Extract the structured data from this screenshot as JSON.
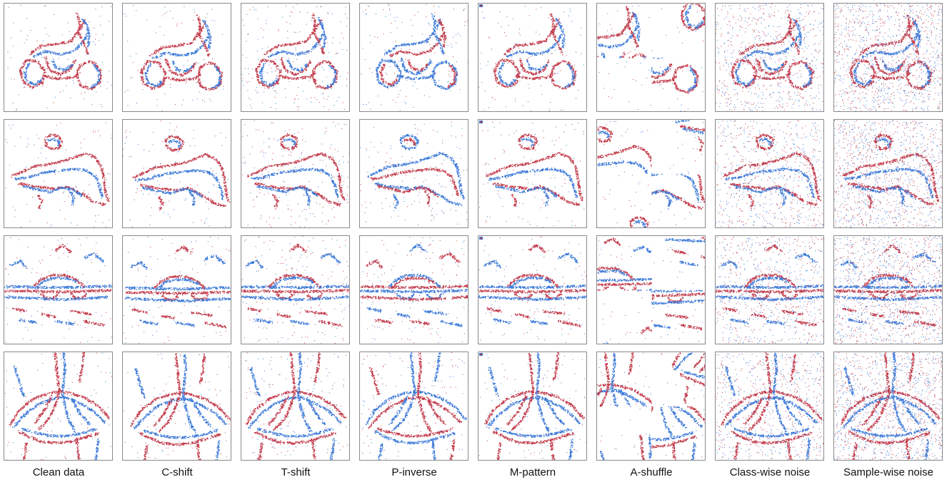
{
  "columns": [
    {
      "id": "clean",
      "label": "Clean data",
      "noise": 0.004
    },
    {
      "id": "c-shift",
      "label": "C-shift",
      "noise": 0.004
    },
    {
      "id": "t-shift",
      "label": "T-shift",
      "noise": 0.008
    },
    {
      "id": "p-inverse",
      "label": "P-inverse",
      "noise": 0.006
    },
    {
      "id": "m-pattern",
      "label": "M-pattern",
      "noise": 0.005
    },
    {
      "id": "a-shuffle",
      "label": "A-shuffle",
      "noise": 0.003
    },
    {
      "id": "class-wise-noise",
      "label": "Class-wise noise",
      "noise": 0.03
    },
    {
      "id": "sample-wise-noise",
      "label": "Sample-wise noise",
      "noise": 0.05
    }
  ],
  "rows": [
    {
      "id": "motorbike",
      "subject": "motorbike"
    },
    {
      "id": "dolphin",
      "subject": "dolphin"
    },
    {
      "id": "car",
      "subject": "car"
    },
    {
      "id": "butterfly",
      "subject": "butterfly"
    }
  ],
  "colors": {
    "positive_event": "#c23a4a",
    "negative_event": "#3a78d8",
    "background": "#ffffff",
    "tile_border": "#8a8a8a"
  }
}
